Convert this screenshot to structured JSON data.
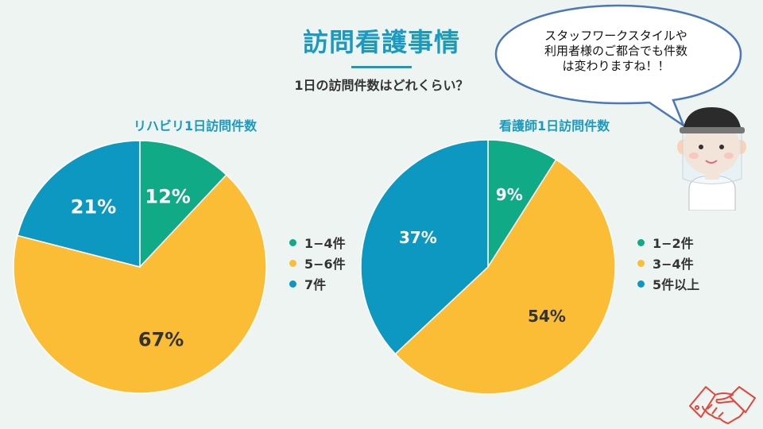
{
  "header": {
    "title": "訪問看護事情",
    "subtitle": "1日の訪問件数はどれくらい？"
  },
  "speech_bubble": {
    "lines": [
      "スタッフワークスタイルや",
      "利用者様のご都合でも件数",
      "は変わりますね！！"
    ]
  },
  "colors": {
    "green": "#10aa86",
    "yellow": "#fbbd35",
    "blue": "#0d98c1",
    "accent": "#1a9ac0",
    "logo": "#e2473b"
  },
  "icons": [
    "nurse-illustration",
    "handshake-icon"
  ],
  "chart_data": [
    {
      "type": "pie",
      "title": "リハビリ1日訪問件数",
      "categories": [
        "1−4件",
        "5−6件",
        "7件"
      ],
      "values": [
        12,
        67,
        21
      ],
      "labels": [
        "12%",
        "67%",
        "21%"
      ],
      "colors": [
        "#10aa86",
        "#fbbd35",
        "#0d98c1"
      ],
      "legend": "right"
    },
    {
      "type": "pie",
      "title": "看護師1日訪問件数",
      "categories": [
        "1−2件",
        "3−4件",
        "5件以上"
      ],
      "values": [
        9,
        54,
        37
      ],
      "labels": [
        "9%",
        "54%",
        "37%"
      ],
      "colors": [
        "#10aa86",
        "#fbbd35",
        "#0d98c1"
      ],
      "legend": "right"
    }
  ]
}
